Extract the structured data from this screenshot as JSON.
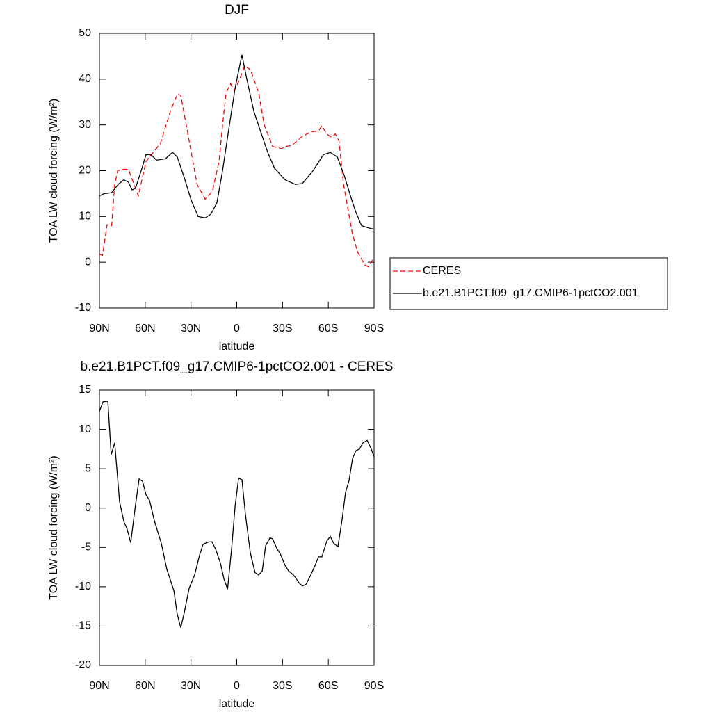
{
  "chart_data": [
    {
      "type": "line",
      "title": "DJF",
      "xlabel": "latitude",
      "ylabel": "TOA LW cloud forcing (W/m²)",
      "xlim": [
        90,
        -90
      ],
      "xticks": [
        {
          "value": 90,
          "label": "90N"
        },
        {
          "value": 60,
          "label": "60N"
        },
        {
          "value": 30,
          "label": "30N"
        },
        0,
        {
          "value": -30,
          "label": "30S"
        },
        {
          "value": -60,
          "label": "60S"
        },
        {
          "value": -90,
          "label": "90S"
        }
      ],
      "ylim": [
        -10,
        50
      ],
      "yticks": [
        -10,
        0,
        10,
        20,
        30,
        40,
        50
      ],
      "legend": "outside right",
      "series": [
        {
          "name": "CERES",
          "color": "#ff0000",
          "line_style": "dashed",
          "x": [
            90,
            88,
            85,
            82,
            80,
            78,
            75,
            71,
            64.5,
            59.5,
            50,
            43.5,
            39,
            36.7,
            32,
            26,
            20.7,
            16,
            11.6,
            9.3,
            7,
            4,
            1.6,
            -2,
            -5.3,
            -9,
            -14.4,
            -18,
            -23.5,
            -29.4,
            -31.7,
            -36,
            -43,
            -49,
            -53.6,
            -55.8,
            -59,
            -62,
            -64.6,
            -67,
            -70,
            -72.7,
            -75.9,
            -79.5,
            -84,
            -86.4,
            -90
          ],
          "values": [
            1.8,
            1.5,
            8.2,
            8,
            17,
            20,
            20.3,
            20.3,
            14.5,
            22,
            26,
            33,
            36.7,
            36.5,
            28,
            17,
            13.8,
            15.5,
            22,
            30,
            37,
            39,
            37.5,
            40,
            43,
            42,
            37,
            30,
            25.3,
            24.8,
            25.3,
            25.5,
            27.5,
            28.5,
            28.7,
            29.8,
            28,
            27.3,
            28,
            26.5,
            17,
            12,
            6,
            2,
            -0.6,
            -1,
            1
          ]
        },
        {
          "name": "b.e21.B1PCT.f09_g17.CMIP6-1pctCO2.001",
          "color": "#000000",
          "line_style": "solid",
          "x": [
            90,
            86.8,
            82,
            77.7,
            74,
            71,
            68.6,
            66.3,
            61.7,
            59.5,
            56.3,
            52.6,
            46.7,
            42.1,
            39,
            34.4,
            29.8,
            25.3,
            20.7,
            17,
            13,
            9.3,
            4.8,
            1.1,
            -3.4,
            -6.6,
            -11.2,
            -15.7,
            -20.3,
            -24.8,
            -31.7,
            -38.5,
            -43,
            -50,
            -56.8,
            -61.3,
            -65.9,
            -70.4,
            -75,
            -78,
            -81.8,
            -86.4,
            -90
          ],
          "values": [
            14.5,
            15,
            15.2,
            17,
            18,
            17.5,
            15.8,
            16.2,
            21,
            23.5,
            23.5,
            22.3,
            22.6,
            24,
            23,
            18.5,
            13.5,
            10,
            9.7,
            10.5,
            13,
            20,
            30,
            38,
            45.3,
            40,
            33,
            28.5,
            24,
            20.5,
            18,
            17,
            17.2,
            20,
            23.5,
            24,
            23,
            19,
            14,
            11,
            8,
            7.5,
            7.2
          ]
        }
      ]
    },
    {
      "type": "line",
      "title": "b.e21.B1PCT.f09_g17.CMIP6-1pctCO2.001 - CERES",
      "xlabel": "latitude",
      "ylabel": "TOA LW cloud forcing (W/m²)",
      "xlim": [
        90,
        -90
      ],
      "xticks": [
        {
          "value": 90,
          "label": "90N"
        },
        {
          "value": 60,
          "label": "60N"
        },
        {
          "value": 30,
          "label": "30N"
        },
        0,
        {
          "value": -30,
          "label": "30S"
        },
        {
          "value": -60,
          "label": "60S"
        },
        {
          "value": -90,
          "label": "90S"
        }
      ],
      "ylim": [
        -20,
        15
      ],
      "yticks": [
        -20,
        -15,
        -10,
        -5,
        0,
        5,
        10,
        15
      ],
      "series": [
        {
          "color": "#000000",
          "line_style": "solid",
          "x": [
            90,
            87.7,
            84.5,
            82.3,
            80,
            76.8,
            74,
            71.8,
            69.5,
            66.3,
            64,
            61.7,
            59.5,
            57.2,
            54,
            49.4,
            45.8,
            41.2,
            39,
            36.7,
            34.4,
            31.2,
            27.6,
            24.4,
            22.1,
            18.4,
            16.2,
            13.9,
            10.7,
            8.4,
            6,
            3.3,
            1.1,
            -1.2,
            -3.4,
            -5.7,
            -8.9,
            -12,
            -14.4,
            -16.7,
            -18.9,
            -21.7,
            -23.5,
            -26.2,
            -28.5,
            -31.7,
            -34,
            -37.2,
            -40.8,
            -43,
            -45.4,
            -48.5,
            -51.3,
            -53.6,
            -55.8,
            -59,
            -61.3,
            -63.6,
            -66.3,
            -69,
            -71.3,
            -73.6,
            -75.9,
            -78.1,
            -80.4,
            -82.7,
            -85.5,
            -88.2,
            -90
          ],
          "values": [
            12.3,
            13.5,
            13.6,
            6.8,
            8.3,
            0.8,
            -1.7,
            -2.7,
            -4.4,
            0.5,
            3.7,
            3.4,
            1.7,
            1,
            -1.6,
            -4.5,
            -7.8,
            -10.5,
            -13.5,
            -15.2,
            -13.3,
            -10.2,
            -8.5,
            -6,
            -4.6,
            -4.3,
            -4.3,
            -5.2,
            -7,
            -9,
            -10.3,
            -5,
            0.2,
            3.8,
            3.6,
            -0.8,
            -5.7,
            -8.2,
            -8.5,
            -8,
            -4.8,
            -3.8,
            -3.9,
            -5.1,
            -5.8,
            -7.3,
            -8,
            -8.5,
            -9.5,
            -9.9,
            -9.7,
            -8.5,
            -7.3,
            -6.2,
            -6.2,
            -4.2,
            -3.6,
            -4.5,
            -4.9,
            -1.5,
            2,
            3.5,
            6.3,
            7.3,
            7.5,
            8.3,
            8.6,
            7.5,
            6.5
          ]
        }
      ]
    }
  ]
}
